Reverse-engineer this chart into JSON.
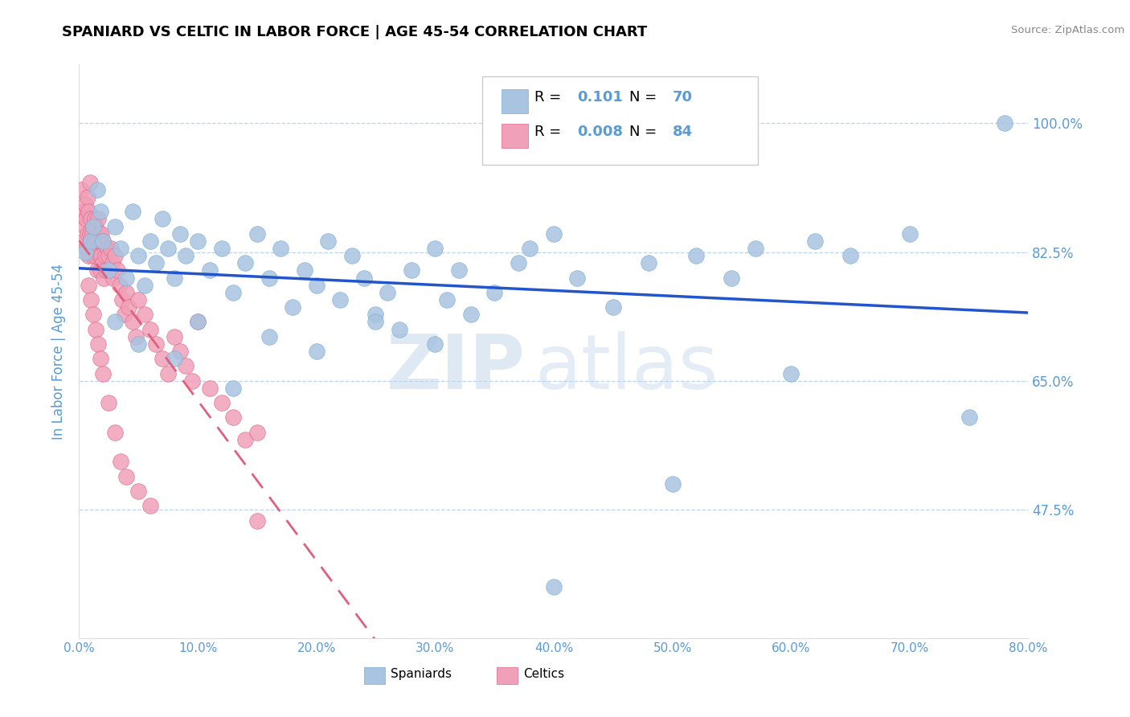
{
  "title": "SPANIARD VS CELTIC IN LABOR FORCE | AGE 45-54 CORRELATION CHART",
  "source_text": "Source: ZipAtlas.com",
  "ylabel": "In Labor Force | Age 45-54",
  "xlim": [
    0.0,
    0.8
  ],
  "ylim": [
    0.3,
    1.08
  ],
  "xtick_labels": [
    "0.0%",
    "10.0%",
    "20.0%",
    "30.0%",
    "40.0%",
    "50.0%",
    "60.0%",
    "70.0%",
    "80.0%"
  ],
  "xtick_values": [
    0.0,
    0.1,
    0.2,
    0.3,
    0.4,
    0.5,
    0.6,
    0.7,
    0.8
  ],
  "ytick_labels": [
    "47.5%",
    "65.0%",
    "82.5%",
    "100.0%"
  ],
  "ytick_values": [
    0.475,
    0.65,
    0.825,
    1.0
  ],
  "grid_color": "#b8cfe8",
  "background_color": "#ffffff",
  "blue_color": "#a8c4e0",
  "blue_edge_color": "#7aafd4",
  "pink_color": "#f0a0b8",
  "pink_edge_color": "#e06888",
  "trend_blue": "#2255cc",
  "trend_pink": "#e06080",
  "legend_R_blue": "0.101",
  "legend_N_blue": "70",
  "legend_R_pink": "0.008",
  "legend_N_pink": "84",
  "legend_label_blue": "Spaniards",
  "legend_label_pink": "Celtics",
  "watermark_zip": "ZIP",
  "watermark_atlas": "atlas",
  "title_color": "#000000",
  "axis_label_color": "#5b9bd5",
  "tick_label_color": "#5b9bd5",
  "source_color": "#888888",
  "blue_scatter_x": [
    0.005,
    0.01,
    0.012,
    0.015,
    0.018,
    0.02,
    0.025,
    0.03,
    0.035,
    0.04,
    0.045,
    0.05,
    0.055,
    0.06,
    0.065,
    0.07,
    0.075,
    0.08,
    0.085,
    0.09,
    0.1,
    0.11,
    0.12,
    0.13,
    0.14,
    0.15,
    0.16,
    0.17,
    0.18,
    0.19,
    0.2,
    0.21,
    0.22,
    0.23,
    0.24,
    0.25,
    0.26,
    0.27,
    0.28,
    0.3,
    0.31,
    0.32,
    0.33,
    0.35,
    0.37,
    0.38,
    0.4,
    0.42,
    0.45,
    0.48,
    0.5,
    0.52,
    0.55,
    0.57,
    0.6,
    0.62,
    0.65,
    0.7,
    0.75,
    0.78,
    0.03,
    0.05,
    0.08,
    0.1,
    0.13,
    0.16,
    0.2,
    0.25,
    0.3,
    0.4
  ],
  "blue_scatter_y": [
    0.825,
    0.84,
    0.86,
    0.91,
    0.88,
    0.84,
    0.8,
    0.86,
    0.83,
    0.79,
    0.88,
    0.82,
    0.78,
    0.84,
    0.81,
    0.87,
    0.83,
    0.79,
    0.85,
    0.82,
    0.84,
    0.8,
    0.83,
    0.77,
    0.81,
    0.85,
    0.79,
    0.83,
    0.75,
    0.8,
    0.78,
    0.84,
    0.76,
    0.82,
    0.79,
    0.74,
    0.77,
    0.72,
    0.8,
    0.83,
    0.76,
    0.8,
    0.74,
    0.77,
    0.81,
    0.83,
    0.85,
    0.79,
    0.75,
    0.81,
    0.51,
    0.82,
    0.79,
    0.83,
    0.66,
    0.84,
    0.82,
    0.85,
    0.6,
    1.0,
    0.73,
    0.7,
    0.68,
    0.73,
    0.64,
    0.71,
    0.69,
    0.73,
    0.7,
    0.37
  ],
  "pink_scatter_x": [
    0.001,
    0.002,
    0.003,
    0.004,
    0.005,
    0.005,
    0.006,
    0.006,
    0.007,
    0.007,
    0.008,
    0.008,
    0.009,
    0.009,
    0.01,
    0.01,
    0.011,
    0.011,
    0.012,
    0.012,
    0.013,
    0.013,
    0.014,
    0.014,
    0.015,
    0.015,
    0.016,
    0.016,
    0.017,
    0.017,
    0.018,
    0.018,
    0.019,
    0.019,
    0.02,
    0.02,
    0.021,
    0.022,
    0.023,
    0.024,
    0.025,
    0.026,
    0.027,
    0.028,
    0.029,
    0.03,
    0.032,
    0.034,
    0.036,
    0.038,
    0.04,
    0.042,
    0.045,
    0.048,
    0.05,
    0.055,
    0.06,
    0.065,
    0.07,
    0.075,
    0.08,
    0.085,
    0.09,
    0.095,
    0.1,
    0.11,
    0.12,
    0.13,
    0.14,
    0.15,
    0.008,
    0.01,
    0.012,
    0.014,
    0.016,
    0.018,
    0.02,
    0.025,
    0.03,
    0.035,
    0.04,
    0.05,
    0.06,
    0.15
  ],
  "pink_scatter_y": [
    0.875,
    0.91,
    0.88,
    0.84,
    0.86,
    0.89,
    0.83,
    0.87,
    0.85,
    0.9,
    0.82,
    0.88,
    0.85,
    0.92,
    0.84,
    0.87,
    0.82,
    0.85,
    0.86,
    0.83,
    0.84,
    0.87,
    0.82,
    0.86,
    0.84,
    0.8,
    0.83,
    0.87,
    0.82,
    0.85,
    0.8,
    0.84,
    0.82,
    0.85,
    0.81,
    0.84,
    0.79,
    0.82,
    0.8,
    0.83,
    0.82,
    0.8,
    0.83,
    0.81,
    0.79,
    0.82,
    0.8,
    0.78,
    0.76,
    0.74,
    0.77,
    0.75,
    0.73,
    0.71,
    0.76,
    0.74,
    0.72,
    0.7,
    0.68,
    0.66,
    0.71,
    0.69,
    0.67,
    0.65,
    0.73,
    0.64,
    0.62,
    0.6,
    0.57,
    0.58,
    0.78,
    0.76,
    0.74,
    0.72,
    0.7,
    0.68,
    0.66,
    0.62,
    0.58,
    0.54,
    0.52,
    0.5,
    0.48,
    0.46
  ]
}
